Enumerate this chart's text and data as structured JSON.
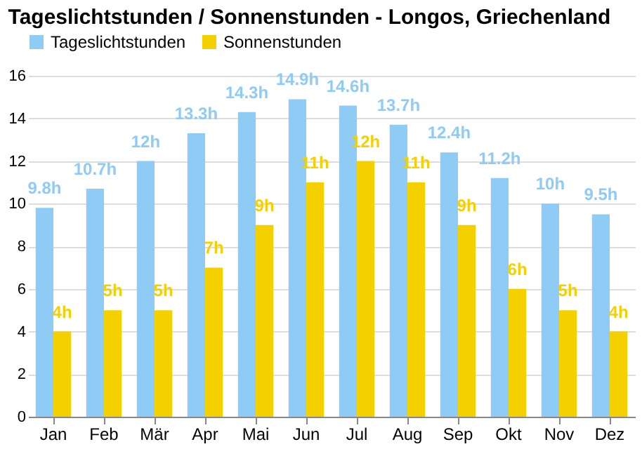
{
  "chart_data": {
    "type": "bar",
    "title": "Tageslichtstunden / Sonnenstunden - Longos, Griechenland",
    "categories": [
      "Jan",
      "Feb",
      "Mär",
      "Apr",
      "Mai",
      "Jun",
      "Jul",
      "Aug",
      "Sep",
      "Okt",
      "Nov",
      "Dez"
    ],
    "series": [
      {
        "name": "Tageslichtstunden",
        "color": "#8ecbf5",
        "values": [
          9.8,
          10.7,
          12,
          13.3,
          14.3,
          14.9,
          14.6,
          13.7,
          12.4,
          11.2,
          10,
          9.5
        ],
        "value_labels": [
          "9.8h",
          "10.7h",
          "12h",
          "13.3h",
          "14.3h",
          "14.9h",
          "14.6h",
          "13.7h",
          "12.4h",
          "11.2h",
          "10h",
          "9.5h"
        ]
      },
      {
        "name": "Sonnenstunden",
        "color": "#f5d000",
        "values": [
          4,
          5,
          5,
          7,
          9,
          11,
          12,
          11,
          9,
          6,
          5,
          4
        ],
        "value_labels": [
          "4h",
          "5h",
          "5h",
          "7h",
          "9h",
          "11h",
          "12h",
          "11h",
          "9h",
          "6h",
          "5h",
          "4h"
        ]
      }
    ],
    "ylim": [
      0,
      16
    ],
    "yticks": [
      0,
      2,
      4,
      6,
      8,
      10,
      12,
      14,
      16
    ],
    "grid": "y",
    "legend": "top left"
  }
}
